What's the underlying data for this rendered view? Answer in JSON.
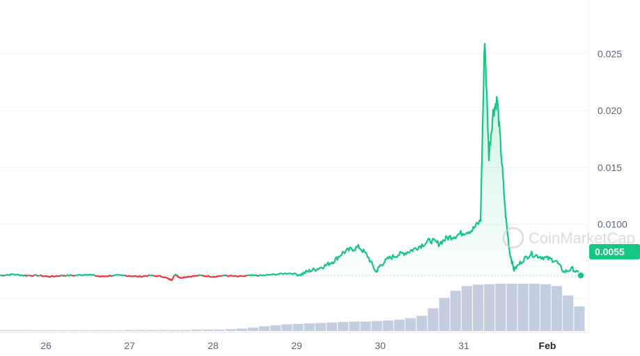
{
  "watermark": "CoinMarketCap",
  "colors": {
    "up": "#16c784",
    "down": "#ea3943",
    "grid": "#eff2f5",
    "volume": "#c5cde0",
    "badge": "#16c784"
  },
  "chart_data": {
    "type": "line",
    "x_ticks": [
      "26",
      "27",
      "28",
      "29",
      "30",
      "31",
      "Feb"
    ],
    "y_ticks": [
      "0.025",
      "0.020",
      "0.015",
      "0.0100"
    ],
    "y_tick_values": [
      0.025,
      0.02,
      0.015,
      0.01
    ],
    "ylim": [
      0.0005,
      0.0285
    ],
    "xlim": [
      25.45,
      32.45
    ],
    "reference_price": 0.0055,
    "current_price_label": "0.0055",
    "grid": true,
    "series": [
      {
        "values_x": [
          25.45,
          25.6,
          25.75,
          25.9,
          26.05,
          26.2,
          26.35,
          26.5,
          26.65,
          26.8,
          26.95,
          27.1,
          27.25,
          27.4,
          27.5,
          27.55,
          27.6,
          27.7,
          27.85,
          28.0,
          28.15,
          28.3,
          28.45,
          28.6,
          28.75,
          28.9,
          29.05,
          29.15,
          29.25,
          29.35,
          29.45,
          29.55,
          29.65,
          29.75,
          29.85,
          29.95,
          30.0,
          30.1,
          30.2,
          30.3,
          30.4,
          30.5,
          30.6,
          30.7,
          30.8,
          30.9,
          31.0,
          31.1,
          31.2,
          31.25,
          31.3,
          31.35,
          31.4,
          31.45,
          31.5,
          31.55,
          31.6,
          31.7,
          31.8,
          31.9,
          32.0,
          32.1,
          32.2,
          32.3,
          32.4
        ],
        "values_y": [
          0.0055,
          0.0056,
          0.0055,
          0.0055,
          0.0054,
          0.0055,
          0.0055,
          0.0056,
          0.0054,
          0.0055,
          0.0055,
          0.0054,
          0.0055,
          0.0054,
          0.0051,
          0.0056,
          0.0053,
          0.0054,
          0.0055,
          0.0054,
          0.0055,
          0.0054,
          0.0055,
          0.0055,
          0.0056,
          0.0057,
          0.0056,
          0.0059,
          0.0061,
          0.0064,
          0.0068,
          0.0075,
          0.0078,
          0.008,
          0.0072,
          0.0058,
          0.0064,
          0.007,
          0.0073,
          0.0075,
          0.0078,
          0.0082,
          0.0086,
          0.0083,
          0.0088,
          0.009,
          0.0093,
          0.0095,
          0.0103,
          0.0265,
          0.016,
          0.0198,
          0.021,
          0.016,
          0.0108,
          0.0075,
          0.006,
          0.0068,
          0.0074,
          0.0072,
          0.007,
          0.0068,
          0.0058,
          0.0061,
          0.0055
        ]
      }
    ],
    "volume": [
      0.01,
      0.01,
      0.01,
      0.01,
      0.01,
      0.01,
      0.01,
      0.01,
      0.01,
      0.01,
      0.01,
      0.02,
      0.02,
      0.02,
      0.02,
      0.02,
      0.02,
      0.03,
      0.03,
      0.03,
      0.04,
      0.05,
      0.07,
      0.1,
      0.12,
      0.14,
      0.15,
      0.16,
      0.17,
      0.18,
      0.19,
      0.2,
      0.2,
      0.21,
      0.22,
      0.24,
      0.27,
      0.32,
      0.48,
      0.7,
      0.85,
      0.95,
      0.98,
      0.99,
      1.0,
      1.0,
      1.0,
      1.0,
      0.99,
      0.95,
      0.75,
      0.52
    ]
  }
}
